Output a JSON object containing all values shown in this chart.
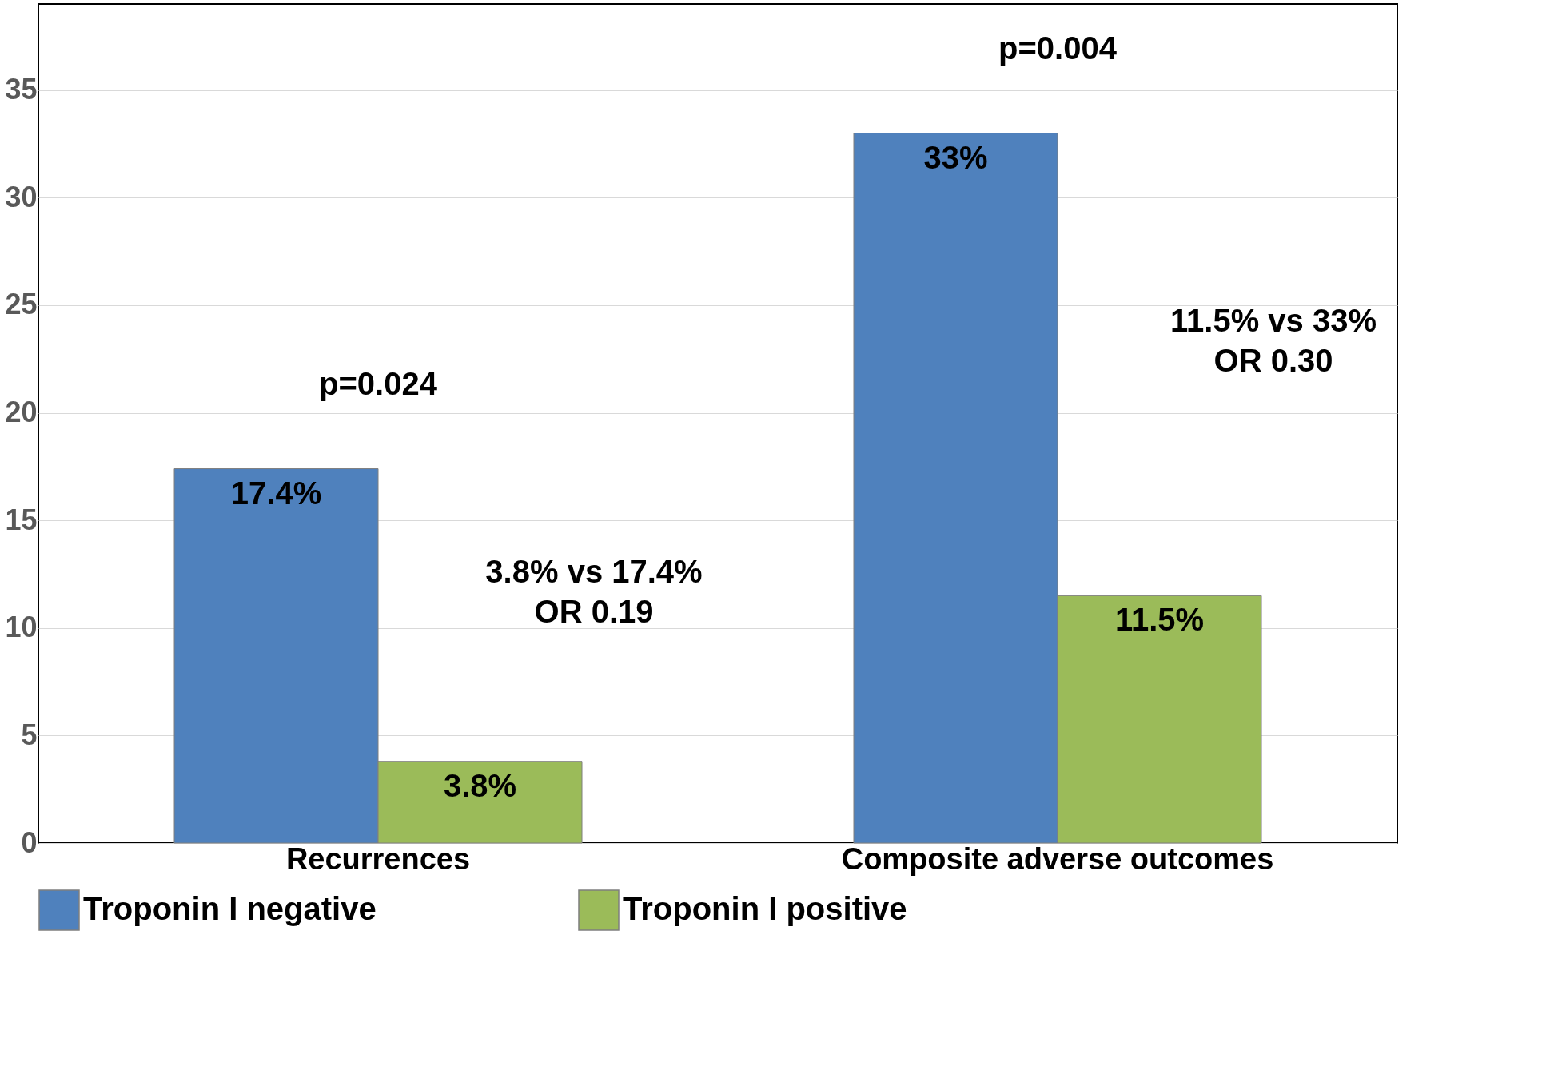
{
  "chart_data": {
    "type": "bar",
    "categories": [
      "Recurrences",
      "Composite adverse outcomes"
    ],
    "series": [
      {
        "name": "Troponin I negative",
        "color": "#4f81bd",
        "values": [
          17.4,
          33
        ],
        "value_labels": [
          "17.4%",
          "33%"
        ]
      },
      {
        "name": "Troponin I positive",
        "color": "#9bbb59",
        "values": [
          3.8,
          11.5
        ],
        "value_labels": [
          "3.8%",
          "11.5%"
        ]
      }
    ],
    "ylim": [
      0,
      39
    ],
    "yticks": [
      0,
      5,
      10,
      15,
      20,
      25,
      30,
      35
    ],
    "grid": "y",
    "legend": "bottom",
    "annotations": [
      "p=0.024",
      "p=0.004",
      "3.8% vs 17.4%\nOR 0.19",
      "11.5% vs 33%\nOR 0.30"
    ]
  }
}
